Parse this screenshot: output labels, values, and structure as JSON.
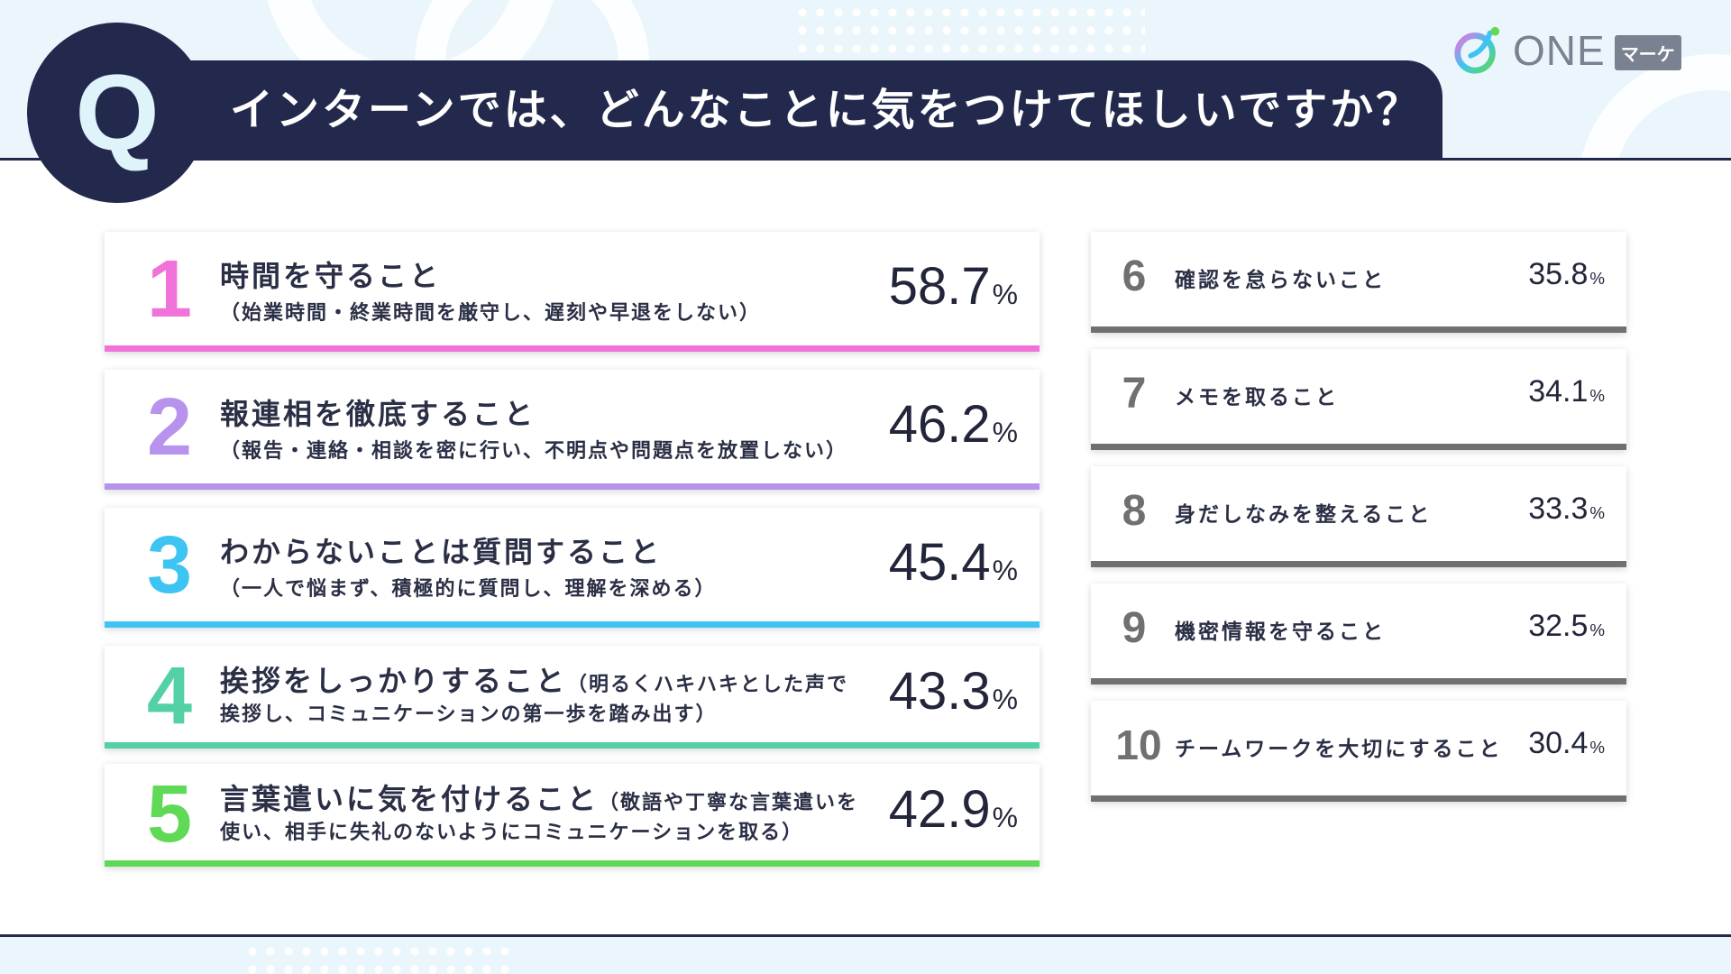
{
  "header": {
    "q_letter": "Q",
    "title": "インターンでは、どんなことに気をつけてほしいですか？"
  },
  "logo": {
    "one": "ONE",
    "marke": "マーケ",
    "icon": "one-marke-logo-icon"
  },
  "colors": {
    "navy": "#23294d",
    "rank1": "#f173d9",
    "rank2": "#b793ee",
    "rank3": "#3dc4f2",
    "rank4": "#53d1a5",
    "rank5": "#5fd956",
    "rank6to10": "#707070"
  },
  "chart_data": {
    "type": "table",
    "title": "インターンでは、どんなことに気をつけてほしいですか？",
    "unit": "%",
    "rows": [
      {
        "rank": "1",
        "label": "時間を守ること",
        "detail": "（始業時間・終業時間を厳守し、遅刻や早退をしない）",
        "value": 58.7,
        "value_text": "58.7",
        "color": "#f173d9"
      },
      {
        "rank": "2",
        "label": "報連相を徹底すること",
        "detail": "（報告・連絡・相談を密に行い、不明点や問題点を放置しない）",
        "value": 46.2,
        "value_text": "46.2",
        "color": "#b793ee"
      },
      {
        "rank": "3",
        "label": "わからないことは質問すること",
        "detail": "（一人で悩まず、積極的に質問し、理解を深める）",
        "value": 45.4,
        "value_text": "45.4",
        "color": "#3dc4f2"
      },
      {
        "rank": "4",
        "label": "挨拶をしっかりすること",
        "detail_inline": "（明るくハキハキとした声で",
        "detail": "挨拶し、コミュニケーションの第一歩を踏み出す）",
        "value": 43.3,
        "value_text": "43.3",
        "color": "#53d1a5"
      },
      {
        "rank": "5",
        "label": "言葉遣いに気を付けること",
        "detail_inline": "（敬語や丁寧な言葉遣いを",
        "detail": "使い、相手に失礼のないようにコミュニケーションを取る）",
        "value": 42.9,
        "value_text": "42.9",
        "color": "#5fd956"
      },
      {
        "rank": "6",
        "label": "確認を怠らないこと",
        "value": 35.8,
        "value_text": "35.8"
      },
      {
        "rank": "7",
        "label": "メモを取ること",
        "value": 34.1,
        "value_text": "34.1"
      },
      {
        "rank": "8",
        "label": "身だしなみを整えること",
        "value": 33.3,
        "value_text": "33.3"
      },
      {
        "rank": "9",
        "label": "機密情報を守ること",
        "value": 32.5,
        "value_text": "32.5"
      },
      {
        "rank": "10",
        "label": "チームワークを大切にすること",
        "value": 30.4,
        "value_text": "30.4"
      }
    ],
    "percent_sign": "%"
  }
}
